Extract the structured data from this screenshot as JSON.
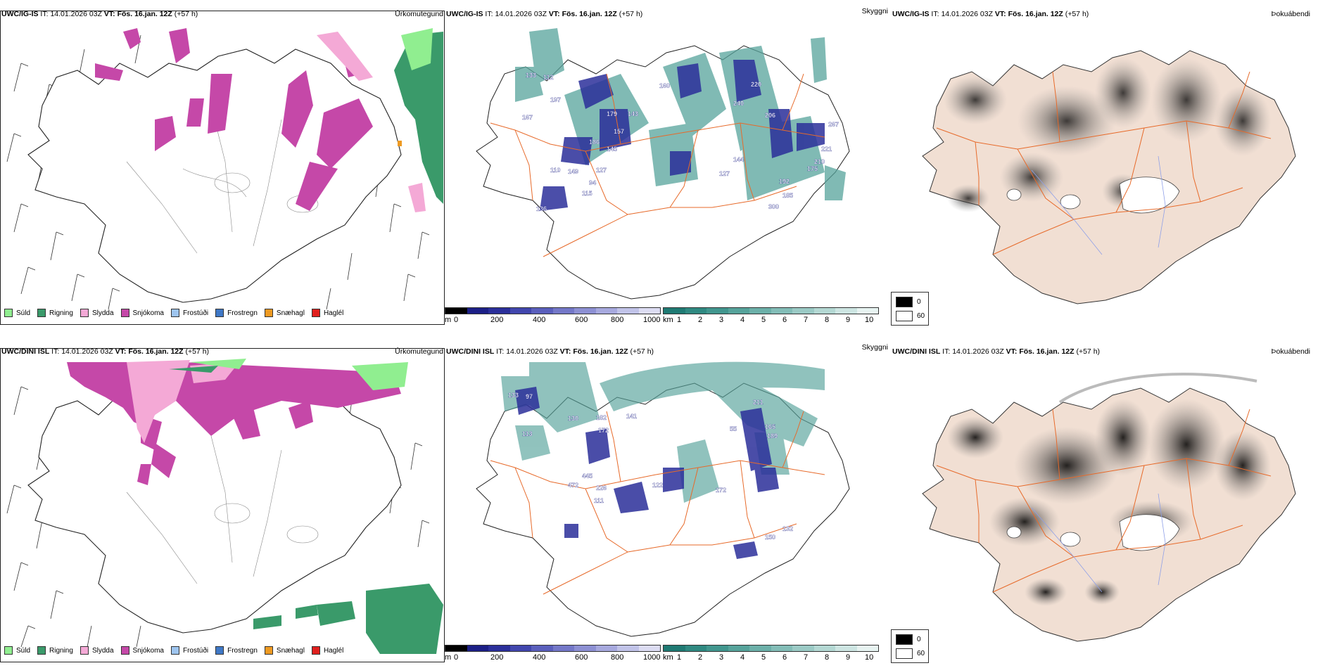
{
  "colors": {
    "suld": "#90ee90",
    "rigning": "#3a9a6a",
    "slydda": "#f4a9d6",
    "snjokoma": "#c548a8",
    "frostudi": "#9ec5ef",
    "frostregn": "#3f78c6",
    "snaehagl": "#ee9a22",
    "haglel": "#e0201e",
    "ceiling": [
      "#000000",
      "#1c1f86",
      "#2b2f9a",
      "#4146ad",
      "#5a5fbc",
      "#7478c8",
      "#8d90d3",
      "#a7a9de",
      "#c1c3e8",
      "#dcdcf2"
    ],
    "vis": [
      "#1f7a73",
      "#2f8981",
      "#41968e",
      "#56a39b",
      "#6cb0a9",
      "#83bdb7",
      "#9bcac5",
      "#b4d8d3",
      "#cde5e2",
      "#e7f3f1"
    ],
    "road": "#e76a2a",
    "fog_tint": "#f1dfd3"
  },
  "rows": [
    {
      "model": "UWC/IG-IS",
      "it_label": "IT:",
      "it_value": "14.01.2026 03Z",
      "vt_label": "VT:",
      "vt_value": "Fös. 16.jan. 12Z",
      "lead": "(+57 h)",
      "titles": {
        "precip_type": "Úrkomutegund",
        "visibility": "Skyggni",
        "fog": "Þokuábendi"
      },
      "ceiling_labels": [
        "133",
        "112",
        "197",
        "167",
        "179",
        "143",
        "160",
        "157",
        "186",
        "145",
        "127",
        "110",
        "149",
        "94",
        "115",
        "136",
        "220",
        "240",
        "206",
        "144",
        "127",
        "192",
        "185",
        "300",
        "175",
        "210",
        "221",
        "267"
      ]
    },
    {
      "model": "UWC/DINI ISL",
      "it_label": "IT:",
      "it_value": "14.01.2026 03Z",
      "vt_label": "VT:",
      "vt_value": "Fös. 16.jan. 12Z",
      "lead": "(+57 h)",
      "titles": {
        "precip_type": "Úrkomutegund",
        "visibility": "Skyggni",
        "fog": "Þokuábendi"
      },
      "ceiling_labels": [
        "133",
        "97",
        "130",
        "113",
        "182",
        "172",
        "141",
        "445",
        "472",
        "226",
        "111",
        "122",
        "172",
        "150",
        "132",
        "165",
        "189",
        "55",
        "211"
      ]
    }
  ],
  "precip_legend": [
    "Súld",
    "Rigning",
    "Slydda",
    "Snjókoma",
    "Frostúði",
    "Frostregn",
    "Snæhagl",
    "Haglél"
  ],
  "ceiling_bar": {
    "unit": "m",
    "ticks": [
      "0",
      "200",
      "400",
      "600",
      "800",
      "1000"
    ]
  },
  "vis_bar": {
    "unit": "km",
    "ticks": [
      "1",
      "2",
      "3",
      "4",
      "5",
      "6",
      "7",
      "8",
      "9",
      "10"
    ]
  },
  "fog_legend": {
    "high": "0",
    "low": "60"
  }
}
